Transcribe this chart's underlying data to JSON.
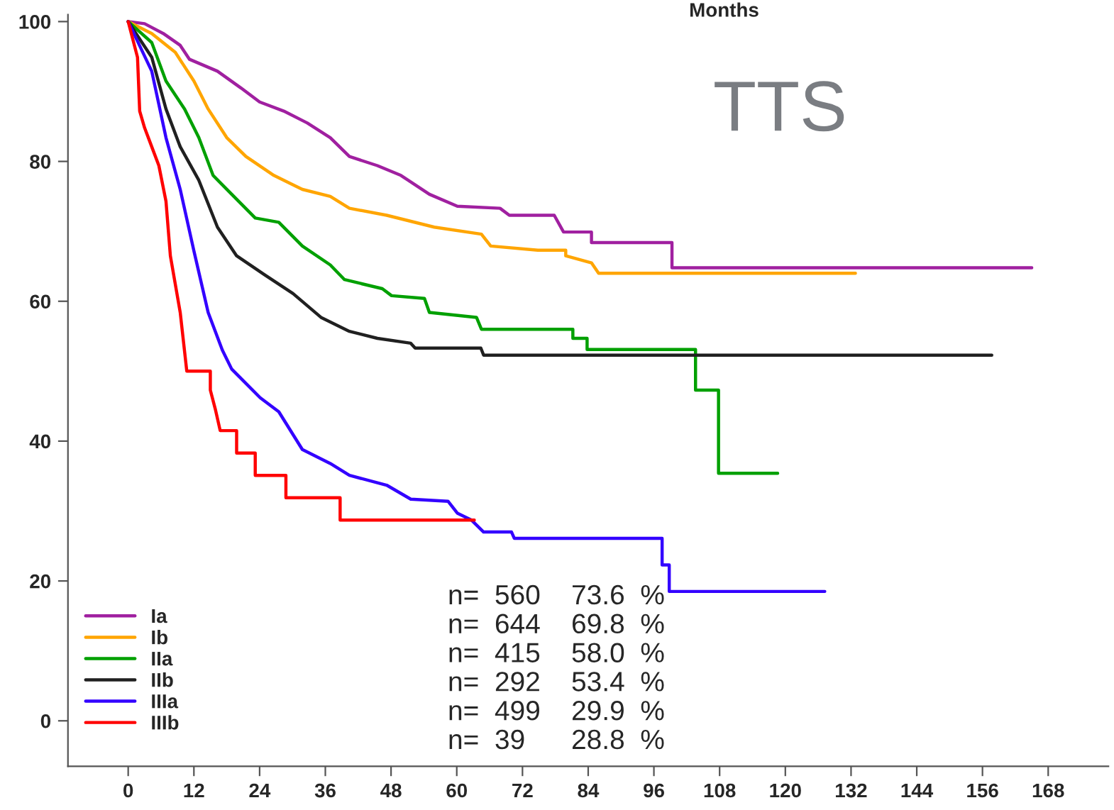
{
  "chart_data": {
    "type": "line",
    "title": "Months",
    "xlim": [
      -11,
      179
    ],
    "ylim": [
      -6.5,
      101
    ],
    "xticks": [
      0,
      12,
      24,
      36,
      48,
      60,
      72,
      84,
      96,
      108,
      120,
      132,
      144,
      156,
      168
    ],
    "yticks": [
      0,
      20,
      40,
      60,
      80,
      100
    ],
    "grid": false,
    "legend": "bottom left",
    "marker": "none",
    "line_style": "solid",
    "annotations": [
      "TTS",
      "n=  560    73.6  %",
      "n=  644    69.8  %",
      "n=  415    58.0  %",
      "n=  292    53.4  %",
      "n=  499    29.9  %",
      "n=  39      28.8  %"
    ],
    "series": [
      {
        "name": "Ia",
        "color": "#a020a0",
        "x": [
          0,
          3,
          6.4,
          9.5,
          11.2,
          16.3,
          20.6,
          24,
          28.4,
          32.7,
          36.9,
          40.4,
          45.5,
          49.8,
          55,
          60.1,
          67.9,
          69.6,
          77.8,
          79.5,
          84.6,
          84.6,
          99.3,
          99.3,
          165
        ],
        "values": [
          100,
          99.7,
          98.3,
          96.6,
          94.6,
          92.9,
          90.5,
          88.5,
          87.2,
          85.5,
          83.4,
          80.7,
          79.4,
          78.0,
          75.3,
          73.6,
          73.3,
          72.3,
          72.3,
          69.9,
          69.9,
          68.4,
          68.4,
          64.8,
          64.8
        ]
      },
      {
        "name": "Ib",
        "color": "#ffa500",
        "x": [
          0,
          4.3,
          8.6,
          12,
          14.6,
          18,
          21.5,
          26.6,
          31.8,
          36.9,
          40.4,
          47.2,
          55.9,
          64.5,
          66.2,
          74.8,
          79.9,
          79.9,
          84.6,
          85.9,
          132.8
        ],
        "values": [
          100,
          98.3,
          95.6,
          91.5,
          87.5,
          83.4,
          80.7,
          78.0,
          76.0,
          75.0,
          73.3,
          72.3,
          70.6,
          69.6,
          67.9,
          67.3,
          67.3,
          66.5,
          65.5,
          64.0,
          64.0
        ]
      },
      {
        "name": "IIa",
        "color": "#00a000",
        "x": [
          0,
          4.3,
          6.9,
          10.3,
          12.9,
          15.5,
          18.9,
          23.2,
          27.5,
          31.8,
          36.9,
          39.5,
          46.4,
          48.1,
          54.1,
          55,
          63.6,
          64.5,
          81.2,
          81.2,
          83.8,
          83.8,
          103.6,
          103.6,
          107.8,
          107.8,
          118.6
        ],
        "values": [
          100,
          97.0,
          91.5,
          87.5,
          83.4,
          78.0,
          75.3,
          71.9,
          71.3,
          67.9,
          65.2,
          63.1,
          61.8,
          60.8,
          60.4,
          58.4,
          57.7,
          56.0,
          56.0,
          54.7,
          54.7,
          53.1,
          53.1,
          47.3,
          47.3,
          35.4,
          35.4
        ]
      },
      {
        "name": "IIb",
        "color": "#202020",
        "x": [
          0,
          4.3,
          6.9,
          9.5,
          12.9,
          16.3,
          19.8,
          24.9,
          30.1,
          35.2,
          40.4,
          45.5,
          51.6,
          52.4,
          64.4,
          64.9,
          157.7
        ],
        "values": [
          100,
          94.9,
          87.5,
          82.1,
          77.3,
          70.6,
          66.5,
          63.8,
          61.1,
          57.7,
          55.7,
          54.7,
          54.0,
          53.3,
          53.3,
          52.3,
          52.3
        ]
      },
      {
        "name": "IIIa",
        "color": "#3300ff",
        "x": [
          0,
          4.3,
          6.9,
          9.5,
          12,
          14.6,
          17.2,
          18.9,
          24.1,
          27.5,
          31.8,
          36.9,
          40.4,
          47.2,
          51.6,
          58.4,
          60.1,
          62.7,
          64.9,
          70,
          70.5,
          97.5,
          97.5,
          98.8,
          98.8,
          127.2
        ],
        "values": [
          100,
          92.9,
          83.4,
          76.0,
          67.2,
          58.4,
          53.0,
          50.3,
          46.2,
          44.2,
          38.8,
          36.8,
          35.1,
          33.7,
          31.7,
          31.4,
          29.7,
          28.7,
          27.0,
          27.0,
          26.1,
          26.1,
          22.3,
          22.3,
          18.5,
          18.5
        ]
      },
      {
        "name": "IIIb",
        "color": "#ff0000",
        "x": [
          0,
          1.7,
          2.1,
          3,
          4.3,
          5.6,
          6.9,
          7.7,
          9.5,
          10.7,
          15,
          15,
          15.9,
          16.8,
          19.8,
          19.8,
          23.2,
          23.2,
          28.8,
          28.8,
          38.7,
          38.7,
          63.2
        ],
        "values": [
          100,
          94.9,
          87.2,
          84.8,
          82.1,
          79.4,
          74.3,
          66.5,
          58.4,
          50.0,
          50.0,
          47.3,
          44.6,
          41.5,
          41.5,
          38.3,
          38.3,
          35.1,
          35.1,
          31.9,
          31.9,
          28.7,
          28.7
        ]
      }
    ]
  }
}
